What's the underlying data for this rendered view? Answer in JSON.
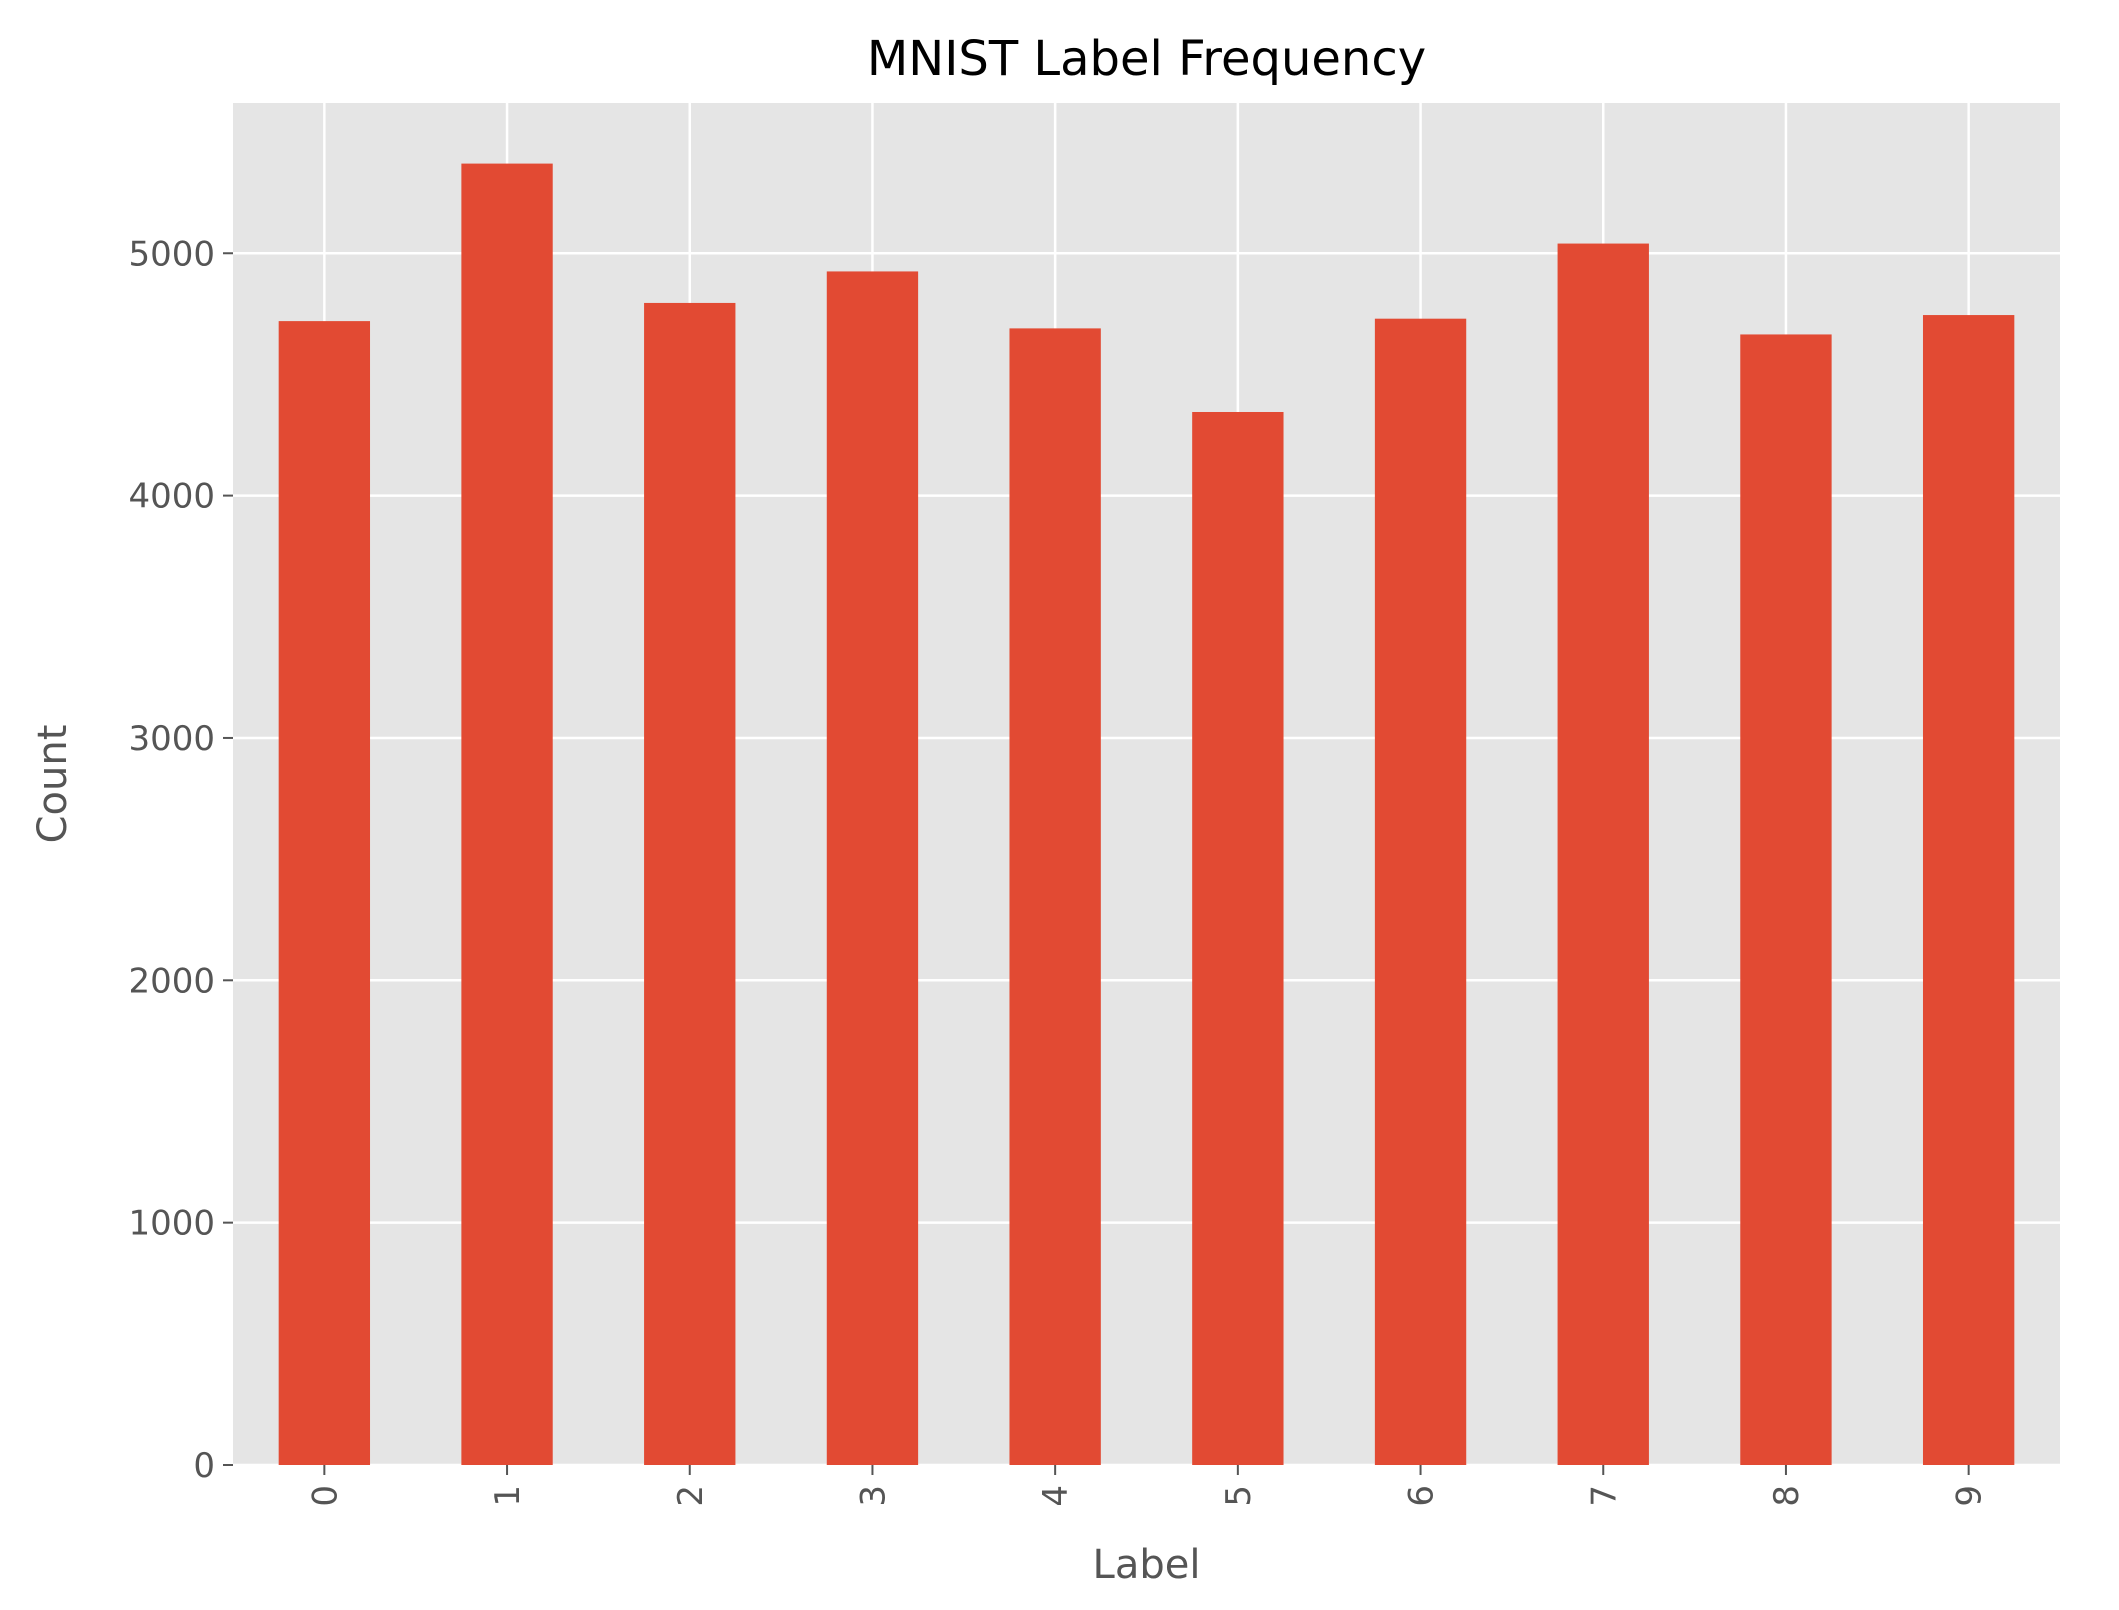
{
  "chart_data": {
    "type": "bar",
    "title": "MNIST Label Frequency",
    "xlabel": "Label",
    "ylabel": "Count",
    "categories": [
      "0",
      "1",
      "2",
      "3",
      "4",
      "5",
      "6",
      "7",
      "8",
      "9"
    ],
    "values": [
      4720,
      5370,
      4795,
      4925,
      4690,
      4345,
      4730,
      5040,
      4665,
      4745
    ],
    "ylim": [
      0,
      5620
    ],
    "yticks": [
      0,
      1000,
      2000,
      3000,
      4000,
      5000
    ],
    "grid": true,
    "tick_label_rotation_x": "vertical",
    "colors": {
      "bar": "#E24A33",
      "plot_background": "#E5E5E5",
      "grid": "#FFFFFF",
      "tick_text": "#555555",
      "title_text": "#000000"
    }
  }
}
